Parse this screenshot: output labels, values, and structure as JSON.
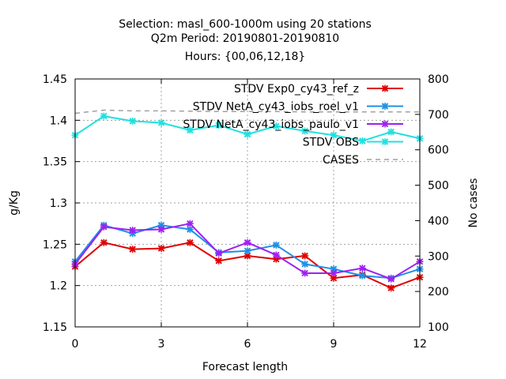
{
  "chart_data": {
    "type": "line",
    "title_lines": [
      "Selection: masl_600-1000m using    20 stations",
      "Q2m   Period: 20190801-20190810",
      "Hours: {00,06,12,18}"
    ],
    "xlabel": "Forecast length",
    "ylabel": "g/Kg",
    "y2label": "No cases",
    "xlim": [
      0,
      12
    ],
    "ylim": [
      1.15,
      1.45
    ],
    "y2lim": [
      100,
      800
    ],
    "xticks": [
      "0",
      "3",
      "6",
      "9",
      "12"
    ],
    "yticks": [
      "1.15",
      "1.2",
      "1.25",
      "1.3",
      "1.35",
      "1.4",
      "1.45"
    ],
    "y2ticks": [
      "100",
      "200",
      "300",
      "400",
      "500",
      "600",
      "700",
      "800"
    ],
    "grid": true,
    "legend_position": "top-right",
    "x": [
      0,
      1,
      2,
      3,
      4,
      5,
      6,
      7,
      8,
      9,
      10,
      11,
      12
    ],
    "series": [
      {
        "name": "STDV Exp0_cy43_ref_z",
        "color": "#e00000",
        "marker": "x",
        "axis": "left",
        "values": [
          1.223,
          1.252,
          1.244,
          1.245,
          1.252,
          1.23,
          1.236,
          1.232,
          1.236,
          1.209,
          1.213,
          1.197,
          1.21
        ]
      },
      {
        "name": "STDV NetA_cy43_iobs_roel_v1",
        "color": "#1e90e6",
        "marker": "x",
        "axis": "left",
        "values": [
          1.229,
          1.273,
          1.263,
          1.273,
          1.268,
          1.24,
          1.242,
          1.249,
          1.226,
          1.22,
          1.212,
          1.209,
          1.22
        ]
      },
      {
        "name": "STDV NetA_cy43_iobs_paulo_v1",
        "color": "#a020f0",
        "marker": "x",
        "axis": "left",
        "values": [
          1.226,
          1.271,
          1.267,
          1.268,
          1.275,
          1.239,
          1.252,
          1.237,
          1.215,
          1.215,
          1.221,
          1.208,
          1.229
        ]
      },
      {
        "name": "STDV OBS",
        "color": "#20e0e0",
        "marker": "x",
        "axis": "left",
        "values": [
          1.382,
          1.405,
          1.399,
          1.397,
          1.388,
          1.394,
          1.383,
          1.393,
          1.387,
          1.382,
          1.375,
          1.386,
          1.378
        ]
      },
      {
        "name": "CASES",
        "color": "#a0a0a0",
        "marker": "none",
        "dash": true,
        "axis": "right",
        "values": [
          703,
          712,
          710,
          710,
          709,
          708,
          708,
          708,
          707,
          707,
          707,
          707,
          707
        ]
      }
    ]
  }
}
